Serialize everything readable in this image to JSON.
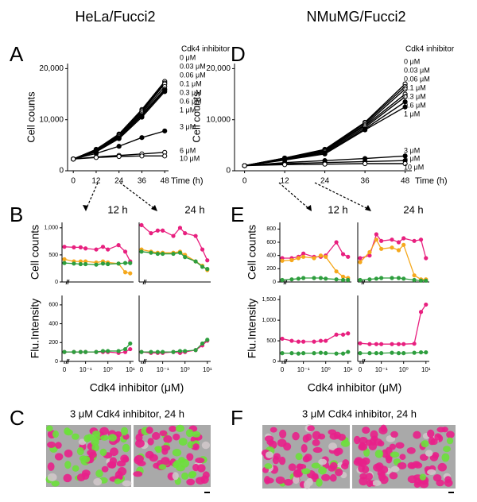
{
  "headers": [
    "HeLa/Fucci2",
    "NMuMG/Fucci2"
  ],
  "panel_labels": [
    "A",
    "B",
    "C",
    "D",
    "E",
    "F"
  ],
  "image_captions": [
    "3 μM Cdk4 inhibitor, 24 h",
    "3 μM Cdk4 inhibitor, 24 h"
  ],
  "chart_data": [
    {
      "type": "line",
      "xlabel": "Time (h)",
      "ylabel": "Cell counts",
      "legend_title": "Cdk4 inhibitor",
      "x": [
        0,
        12,
        24,
        36,
        48
      ],
      "xlim": [
        -3,
        50
      ],
      "xticks": [
        0,
        12,
        24,
        36,
        48
      ],
      "ylim": [
        0,
        21000
      ],
      "yticks": [
        0,
        {
          "value": 10000,
          "label": "10,000"
        },
        {
          "value": 20000,
          "label": "20,000"
        }
      ],
      "series": [
        {
          "name": "0 μM",
          "color": "#000000",
          "marker_fill": "#ffffff",
          "values": [
            2300,
            4200,
            7200,
            12000,
            17500
          ]
        },
        {
          "name": "0.03 μM",
          "color": "#000000",
          "marker_fill": "#ffffff",
          "values": [
            2300,
            4100,
            7100,
            11800,
            17200
          ]
        },
        {
          "name": "0.06 μM",
          "color": "#000000",
          "marker_fill": "#ffffff",
          "values": [
            2300,
            4100,
            7000,
            11600,
            17000
          ]
        },
        {
          "name": "0.1 μM",
          "color": "#000000",
          "marker_fill": "#ffffff",
          "values": [
            2300,
            4000,
            6900,
            11300,
            16500
          ]
        },
        {
          "name": "0.3 μM",
          "color": "#000000",
          "marker_fill": "#ffffff",
          "values": [
            2300,
            3900,
            6700,
            11000,
            16000
          ]
        },
        {
          "name": "0.6 μM",
          "color": "#000000",
          "marker_fill": "#000000",
          "values": [
            2300,
            3800,
            6500,
            10800,
            15800
          ]
        },
        {
          "name": "1 μM",
          "color": "#000000",
          "marker_fill": "#000000",
          "values": [
            2300,
            3700,
            6300,
            10500,
            15500
          ]
        },
        {
          "name": "3 μM",
          "color": "#000000",
          "marker_fill": "#000000",
          "values": [
            2300,
            3400,
            4800,
            6500,
            7800
          ]
        },
        {
          "name": "6 μM",
          "color": "#000000",
          "marker_fill": "#ffffff",
          "values": [
            2300,
            2700,
            3000,
            3300,
            3600
          ]
        },
        {
          "name": "10 μM",
          "color": "#000000",
          "marker_fill": "#ffffff",
          "values": [
            2300,
            2600,
            2800,
            2900,
            2900
          ]
        }
      ]
    },
    {
      "type": "line",
      "xlabel": "Time (h)",
      "ylabel": "Cell counts",
      "legend_title": "Cdk4 inhibitor",
      "x": [
        0,
        12,
        24,
        36,
        48
      ],
      "xlim": [
        -3,
        50
      ],
      "xticks": [
        0,
        12,
        24,
        36,
        48
      ],
      "ylim": [
        0,
        21000
      ],
      "yticks": [
        0,
        {
          "value": 10000,
          "label": "10,000"
        },
        {
          "value": 20000,
          "label": "20,000"
        }
      ],
      "series": [
        {
          "name": "0 μM",
          "color": "#000000",
          "marker_fill": "#ffffff",
          "values": [
            1000,
            2500,
            4200,
            9500,
            17000
          ]
        },
        {
          "name": "0.03 μM",
          "color": "#000000",
          "marker_fill": "#ffffff",
          "values": [
            1000,
            2500,
            4100,
            9300,
            16500
          ]
        },
        {
          "name": "0.06 μM",
          "color": "#000000",
          "marker_fill": "#ffffff",
          "values": [
            1000,
            2400,
            4000,
            9000,
            16000
          ]
        },
        {
          "name": "0.1 μM",
          "color": "#000000",
          "marker_fill": "#ffffff",
          "values": [
            1000,
            2400,
            3900,
            8800,
            15000
          ]
        },
        {
          "name": "0.3 μM",
          "color": "#000000",
          "marker_fill": "#ffffff",
          "values": [
            1000,
            2300,
            3700,
            8500,
            14500
          ]
        },
        {
          "name": "0.6 μM",
          "color": "#000000",
          "marker_fill": "#000000",
          "values": [
            1000,
            2200,
            3500,
            8200,
            13500
          ]
        },
        {
          "name": "1 μM",
          "color": "#000000",
          "marker_fill": "#000000",
          "values": [
            1000,
            2100,
            3300,
            8000,
            12500
          ]
        },
        {
          "name": "3 μM",
          "color": "#000000",
          "marker_fill": "#000000",
          "values": [
            1000,
            1600,
            2000,
            2400,
            2900
          ]
        },
        {
          "name": "6 μM",
          "color": "#000000",
          "marker_fill": "#000000",
          "values": [
            1000,
            1400,
            1600,
            1800,
            2000
          ]
        },
        {
          "name": "10 μM",
          "color": "#000000",
          "marker_fill": "#ffffff",
          "values": [
            1000,
            1200,
            1300,
            1400,
            1400
          ]
        }
      ]
    },
    {
      "type": "line",
      "title": "12 h",
      "ylabel": "Cell counts",
      "xscale": "log",
      "x": [
        0,
        0.03,
        0.06,
        0.1,
        0.3,
        0.6,
        1,
        3,
        6,
        10
      ],
      "xlim": [
        0.02,
        12
      ],
      "ylim": [
        0,
        1100
      ],
      "yticks": [
        0,
        500,
        {
          "value": 1000,
          "label": "1,000"
        }
      ],
      "series": [
        {
          "color": "#e8207f",
          "values": [
            650,
            640,
            640,
            620,
            600,
            650,
            600,
            680,
            560,
            380
          ]
        },
        {
          "color": "#f5a81c",
          "values": [
            420,
            380,
            380,
            380,
            360,
            380,
            360,
            340,
            180,
            160
          ]
        },
        {
          "color": "#2e9e3e",
          "values": [
            350,
            340,
            330,
            330,
            320,
            340,
            330,
            340,
            350,
            350
          ]
        }
      ]
    },
    {
      "type": "line",
      "title": "24 h",
      "xscale": "log",
      "x": [
        0,
        0.03,
        0.06,
        0.1,
        0.3,
        0.6,
        1,
        3,
        6,
        10
      ],
      "xlim": [
        0.02,
        12
      ],
      "ylim": [
        0,
        1100
      ],
      "series": [
        {
          "color": "#e8207f",
          "values": [
            1050,
            900,
            950,
            950,
            850,
            1000,
            900,
            850,
            600,
            400
          ]
        },
        {
          "color": "#f5a81c",
          "values": [
            600,
            560,
            540,
            540,
            540,
            560,
            500,
            380,
            300,
            220
          ]
        },
        {
          "color": "#2e9e3e",
          "values": [
            560,
            540,
            520,
            520,
            520,
            540,
            460,
            380,
            280,
            240
          ]
        }
      ]
    },
    {
      "type": "line",
      "ylabel": "Flu.Intensity",
      "xlabel": "Cdk4 inhibitor (μM)",
      "xscale": "log",
      "x": [
        0,
        0.03,
        0.06,
        0.1,
        0.3,
        0.6,
        1,
        3,
        6,
        10
      ],
      "xlim": [
        0.02,
        12
      ],
      "xticks": [
        0,
        {
          "value": 0.1,
          "label": "10⁻¹"
        },
        {
          "value": 1,
          "label": "10⁰"
        },
        {
          "value": 10,
          "label": "10¹"
        }
      ],
      "ylim": [
        0,
        700
      ],
      "yticks": [
        0,
        200,
        400,
        600
      ],
      "series": [
        {
          "color": "#e8207f",
          "values": [
            100,
            100,
            100,
            100,
            100,
            100,
            100,
            90,
            100,
            130
          ]
        },
        {
          "color": "#2e9e3e",
          "values": [
            100,
            100,
            100,
            100,
            100,
            110,
            110,
            110,
            130,
            190
          ]
        }
      ]
    },
    {
      "type": "line",
      "xscale": "log",
      "x": [
        0,
        0.03,
        0.06,
        0.1,
        0.3,
        0.6,
        1,
        3,
        6,
        10
      ],
      "xlim": [
        0.02,
        12
      ],
      "xticks": [
        0,
        {
          "value": 0.1,
          "label": "10⁻¹"
        },
        {
          "value": 1,
          "label": "10⁰"
        },
        {
          "value": 10,
          "label": "10¹"
        }
      ],
      "ylim": [
        0,
        700
      ],
      "series": [
        {
          "color": "#e8207f",
          "values": [
            100,
            90,
            90,
            90,
            100,
            90,
            100,
            120,
            170,
            220
          ]
        },
        {
          "color": "#2e9e3e",
          "values": [
            100,
            100,
            100,
            100,
            100,
            110,
            110,
            120,
            190,
            230
          ]
        }
      ]
    },
    {
      "type": "line",
      "title": "12 h",
      "ylabel": "Cell counts",
      "xscale": "log",
      "x": [
        0,
        0.03,
        0.06,
        0.1,
        0.3,
        0.6,
        1,
        3,
        6,
        10
      ],
      "xlim": [
        0.02,
        12
      ],
      "ylim": [
        0,
        900
      ],
      "yticks": [
        0,
        200,
        400,
        600,
        800
      ],
      "series": [
        {
          "color": "#e8207f",
          "values": [
            360,
            360,
            380,
            430,
            380,
            380,
            400,
            600,
            420,
            380
          ]
        },
        {
          "color": "#f5a81c",
          "values": [
            320,
            330,
            360,
            380,
            360,
            400,
            380,
            160,
            80,
            60
          ]
        },
        {
          "color": "#2e9e3e",
          "values": [
            30,
            40,
            50,
            60,
            60,
            60,
            50,
            40,
            30,
            30
          ]
        }
      ]
    },
    {
      "type": "line",
      "title": "24 h",
      "xscale": "log",
      "x": [
        0,
        0.03,
        0.06,
        0.1,
        0.3,
        0.6,
        1,
        3,
        6,
        10
      ],
      "xlim": [
        0.02,
        12
      ],
      "ylim": [
        0,
        900
      ],
      "series": [
        {
          "color": "#e8207f",
          "values": [
            360,
            400,
            720,
            620,
            640,
            600,
            660,
            620,
            640,
            360
          ]
        },
        {
          "color": "#f5a81c",
          "values": [
            300,
            450,
            640,
            500,
            520,
            480,
            560,
            100,
            40,
            40
          ]
        },
        {
          "color": "#2e9e3e",
          "values": [
            30,
            40,
            50,
            60,
            60,
            60,
            50,
            30,
            20,
            20
          ]
        }
      ]
    },
    {
      "type": "line",
      "ylabel": "Flu.Intensity",
      "xlabel": "Cdk4 inhibitor (μM)",
      "xscale": "log",
      "x": [
        0,
        0.03,
        0.06,
        0.1,
        0.3,
        0.6,
        1,
        3,
        6,
        10
      ],
      "xlim": [
        0.02,
        12
      ],
      "xticks": [
        0,
        {
          "value": 0.1,
          "label": "10⁻¹"
        },
        {
          "value": 1,
          "label": "10⁰"
        },
        {
          "value": 10,
          "label": "10¹"
        }
      ],
      "ylim": [
        0,
        1600
      ],
      "yticks": [
        0,
        500,
        {
          "value": 1000,
          "label": "1,000"
        },
        {
          "value": 1500,
          "label": "1,500"
        }
      ],
      "series": [
        {
          "color": "#e8207f",
          "values": [
            550,
            500,
            480,
            480,
            480,
            500,
            500,
            650,
            650,
            680
          ]
        },
        {
          "color": "#2e9e3e",
          "values": [
            200,
            200,
            190,
            200,
            200,
            210,
            200,
            190,
            190,
            230
          ]
        }
      ]
    },
    {
      "type": "line",
      "xscale": "log",
      "x": [
        0,
        0.03,
        0.06,
        0.1,
        0.3,
        0.6,
        1,
        3,
        6,
        10
      ],
      "xlim": [
        0.02,
        12
      ],
      "xticks": [
        0,
        {
          "value": 0.1,
          "label": "10⁻¹"
        },
        {
          "value": 1,
          "label": "10⁰"
        },
        {
          "value": 10,
          "label": "10¹"
        }
      ],
      "ylim": [
        0,
        1600
      ],
      "series": [
        {
          "color": "#e8207f",
          "values": [
            440,
            420,
            420,
            420,
            420,
            420,
            420,
            430,
            1200,
            1380
          ]
        },
        {
          "color": "#2e9e3e",
          "values": [
            200,
            200,
            200,
            200,
            210,
            200,
            200,
            210,
            220,
            220
          ]
        }
      ]
    }
  ]
}
